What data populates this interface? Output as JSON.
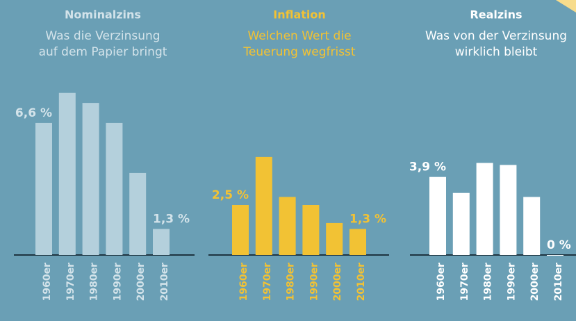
{
  "chart_data": [
    {
      "type": "bar",
      "title": "Nominalzins",
      "subtitle": [
        "Was die Verzinsung",
        "auf dem Papier bringt"
      ],
      "categories": [
        "1960er",
        "1970er",
        "1980er",
        "1990er",
        "2000er",
        "2010er"
      ],
      "values": [
        6.6,
        8.1,
        7.6,
        6.6,
        4.1,
        1.3
      ],
      "value_labels": [
        "6,6 %",
        null,
        null,
        null,
        null,
        "1,3 %"
      ],
      "color": "#b4d0dc",
      "text_color": "#d3e3ea",
      "ylim": [
        0,
        10
      ]
    },
    {
      "type": "bar",
      "title": "Inflation",
      "subtitle": [
        "Welchen Wert die",
        "Teuerung wegfrisst"
      ],
      "categories": [
        "1960er",
        "1970er",
        "1980er",
        "1990er",
        "2000er",
        "2010er"
      ],
      "values": [
        2.5,
        4.9,
        2.9,
        2.5,
        1.6,
        1.3
      ],
      "value_labels": [
        "2,5 %",
        null,
        null,
        null,
        null,
        "1,3 %"
      ],
      "color": "#f2c234",
      "text_color": "#f2c234",
      "ylim": [
        0,
        10
      ]
    },
    {
      "type": "bar",
      "title": "Realzins",
      "subtitle": [
        "Was von der Verzinsung",
        "wirklich bleibt"
      ],
      "categories": [
        "1960er",
        "1970er",
        "1980er",
        "1990er",
        "2000er",
        "2010er"
      ],
      "values": [
        3.9,
        3.1,
        4.6,
        4.5,
        2.9,
        0
      ],
      "value_labels": [
        "3,9 %",
        null,
        null,
        null,
        null,
        "0 %"
      ],
      "color": "#ffffff",
      "text_color": "#ffffff",
      "ylim": [
        0,
        10
      ]
    }
  ]
}
